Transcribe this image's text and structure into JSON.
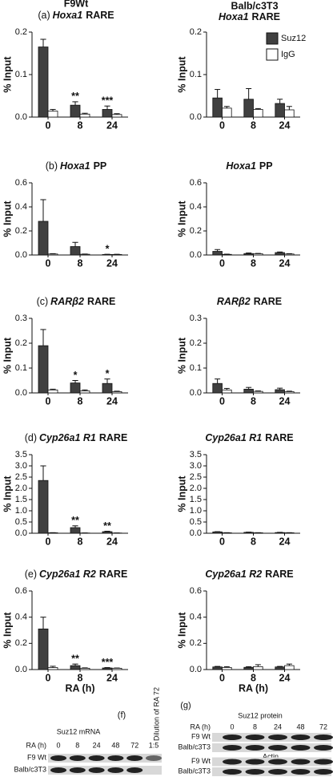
{
  "columns": [
    "F9Wt",
    "Balb/c3T3"
  ],
  "chart_data": [
    {
      "type": "bar",
      "panel": "(a)",
      "gene": "Hoxa1",
      "element": "RARE",
      "ylabel": "% Input",
      "categories": [
        "0",
        "8",
        "24"
      ],
      "ylim": [
        0,
        0.2
      ],
      "yticks": [
        {
          "value": 0,
          "label": "0.0"
        },
        0.1,
        0.2
      ],
      "series": [
        {
          "name": "Suz12",
          "color": "#404040",
          "values": [
            0.165,
            0.028,
            0.018
          ],
          "errors": [
            0.018,
            0.008,
            0.008
          ]
        },
        {
          "name": "IgG",
          "color": "#ffffff",
          "values": [
            0.014,
            0.007,
            0.006
          ],
          "errors": [
            0.004,
            0.002,
            0.002
          ]
        }
      ],
      "annotations": [
        {
          "category": 1,
          "text": "**"
        },
        {
          "category": 2,
          "text": "***"
        }
      ]
    },
    {
      "type": "bar",
      "gene": "Hoxa1",
      "element": "RARE",
      "ylabel": "% Input",
      "categories": [
        "0",
        "8",
        "24"
      ],
      "ylim": [
        0,
        0.2
      ],
      "yticks": [
        {
          "value": 0,
          "label": "0.0"
        },
        0.1,
        0.2
      ],
      "legend": "upper right",
      "series": [
        {
          "name": "Suz12",
          "color": "#404040",
          "values": [
            0.045,
            0.042,
            0.032
          ],
          "errors": [
            0.02,
            0.025,
            0.01
          ]
        },
        {
          "name": "IgG",
          "color": "#ffffff",
          "values": [
            0.021,
            0.018,
            0.017
          ],
          "errors": [
            0.004,
            0.002,
            0.008
          ]
        }
      ]
    },
    {
      "type": "bar",
      "panel": "(b)",
      "gene": "Hoxa1",
      "element": "PP",
      "ylabel": "% Input",
      "categories": [
        "0",
        "8",
        "24"
      ],
      "ylim": [
        0,
        0.6
      ],
      "yticks": [
        {
          "value": 0,
          "label": "0.0"
        },
        0.2,
        0.4,
        0.6
      ],
      "series": [
        {
          "name": "Suz12",
          "color": "#404040",
          "values": [
            0.28,
            0.07,
            0.004
          ],
          "errors": [
            0.18,
            0.035,
            0.002
          ]
        },
        {
          "name": "IgG",
          "color": "#ffffff",
          "values": [
            0.008,
            0.006,
            0.004
          ],
          "errors": [
            0.003,
            0.002,
            0.002
          ]
        }
      ],
      "annotations": [
        {
          "category": 2,
          "text": "*"
        }
      ]
    },
    {
      "type": "bar",
      "gene": "Hoxa1",
      "element": "PP",
      "ylabel": "% Input",
      "categories": [
        "0",
        "8",
        "24"
      ],
      "ylim": [
        0,
        0.6
      ],
      "yticks": [
        {
          "value": 0,
          "label": "0.0"
        },
        0.2,
        0.4,
        0.6
      ],
      "series": [
        {
          "name": "Suz12",
          "color": "#404040",
          "values": [
            0.03,
            0.012,
            0.02
          ],
          "errors": [
            0.015,
            0.005,
            0.005
          ]
        },
        {
          "name": "IgG",
          "color": "#ffffff",
          "values": [
            0.005,
            0.01,
            0.008
          ],
          "errors": [
            0.002,
            0.003,
            0.003
          ]
        }
      ]
    },
    {
      "type": "bar",
      "panel": "(c)",
      "gene": "RARβ2",
      "element": "RARE",
      "ylabel": "% Input",
      "categories": [
        "0",
        "8",
        "24"
      ],
      "ylim": [
        0,
        0.3
      ],
      "yticks": [
        {
          "value": 0,
          "label": "0.0"
        },
        0.1,
        0.2,
        0.3
      ],
      "series": [
        {
          "name": "Suz12",
          "color": "#404040",
          "values": [
            0.19,
            0.04,
            0.038
          ],
          "errors": [
            0.065,
            0.01,
            0.018
          ]
        },
        {
          "name": "IgG",
          "color": "#ffffff",
          "values": [
            0.012,
            0.008,
            0.005
          ],
          "errors": [
            0.003,
            0.004,
            0.002
          ]
        }
      ],
      "annotations": [
        {
          "category": 1,
          "text": "*"
        },
        {
          "category": 2,
          "text": "*"
        }
      ]
    },
    {
      "type": "bar",
      "gene": "RARβ2",
      "element": "RARE",
      "ylabel": "% Input",
      "categories": [
        "0",
        "8",
        "24"
      ],
      "ylim": [
        0,
        0.3
      ],
      "yticks": [
        {
          "value": 0,
          "label": "0.0"
        },
        0.1,
        0.2,
        0.3
      ],
      "series": [
        {
          "name": "Suz12",
          "color": "#404040",
          "values": [
            0.038,
            0.015,
            0.013
          ],
          "errors": [
            0.018,
            0.007,
            0.006
          ]
        },
        {
          "name": "IgG",
          "color": "#ffffff",
          "values": [
            0.012,
            0.006,
            0.005
          ],
          "errors": [
            0.006,
            0.002,
            0.002
          ]
        }
      ]
    },
    {
      "type": "bar",
      "panel": "(d)",
      "gene": "Cyp26a1 R1",
      "element": "RARE",
      "ylabel": "% Input",
      "categories": [
        "0",
        "8",
        "24"
      ],
      "ylim": [
        0,
        3.5
      ],
      "yticks": [
        {
          "value": 0,
          "label": "0.0"
        },
        0.5,
        {
          "value": 1,
          "label": "1.0"
        },
        1.5,
        {
          "value": 2,
          "label": "2.0"
        },
        2.5,
        {
          "value": 3,
          "label": "3.0"
        },
        3.5
      ],
      "series": [
        {
          "name": "Suz12",
          "color": "#404040",
          "values": [
            2.35,
            0.25,
            0.07
          ],
          "errors": [
            0.65,
            0.08,
            0.02
          ]
        },
        {
          "name": "IgG",
          "color": "#ffffff",
          "values": [
            0.02,
            0.01,
            0.01
          ],
          "errors": [
            0.005,
            0.003,
            0.003
          ]
        }
      ],
      "annotations": [
        {
          "category": 1,
          "text": "**"
        },
        {
          "category": 2,
          "text": "**"
        }
      ]
    },
    {
      "type": "bar",
      "gene": "Cyp26a1 R1",
      "element": "RARE",
      "ylabel": "% Input",
      "categories": [
        "0",
        "8",
        "24"
      ],
      "ylim": [
        0,
        3.5
      ],
      "yticks": [
        {
          "value": 0,
          "label": "0.0"
        },
        0.5,
        {
          "value": 1,
          "label": "1.0"
        },
        1.5,
        {
          "value": 2,
          "label": "2.0"
        },
        2.5,
        {
          "value": 3,
          "label": "3.0"
        },
        3.5
      ],
      "series": [
        {
          "name": "Suz12",
          "color": "#404040",
          "values": [
            0.06,
            0.04,
            0.03
          ],
          "errors": [
            0.01,
            0.01,
            0.01
          ]
        },
        {
          "name": "IgG",
          "color": "#ffffff",
          "values": [
            0.02,
            0.02,
            0.02
          ],
          "errors": [
            0.005,
            0.005,
            0.005
          ]
        }
      ]
    },
    {
      "type": "bar",
      "panel": "(e)",
      "gene": "Cyp26a1 R2",
      "element": "RARE",
      "ylabel": "% Input",
      "xlabel": "RA (h)",
      "categories": [
        "0",
        "8",
        "24"
      ],
      "ylim": [
        0,
        0.6
      ],
      "yticks": [
        {
          "value": 0,
          "label": "0.0"
        },
        0.2,
        0.4,
        0.6
      ],
      "series": [
        {
          "name": "Suz12",
          "color": "#404040",
          "values": [
            0.31,
            0.03,
            0.012
          ],
          "errors": [
            0.09,
            0.012,
            0.003
          ]
        },
        {
          "name": "IgG",
          "color": "#ffffff",
          "values": [
            0.015,
            0.01,
            0.01
          ],
          "errors": [
            0.01,
            0.003,
            0.002
          ]
        }
      ],
      "annotations": [
        {
          "category": 1,
          "text": "**"
        },
        {
          "category": 2,
          "text": "***"
        }
      ]
    },
    {
      "type": "bar",
      "gene": "Cyp26a1 R2",
      "element": "RARE",
      "ylabel": "% Input",
      "xlabel": "RA (h)",
      "categories": [
        "0",
        "8",
        "24"
      ],
      "ylim": [
        0,
        0.6
      ],
      "yticks": [
        {
          "value": 0,
          "label": "0.0"
        },
        0.2,
        0.4,
        0.6
      ],
      "series": [
        {
          "name": "Suz12",
          "color": "#404040",
          "values": [
            0.02,
            0.017,
            0.02
          ],
          "errors": [
            0.004,
            0.005,
            0.004
          ]
        },
        {
          "name": "IgG",
          "color": "#ffffff",
          "values": [
            0.016,
            0.022,
            0.03
          ],
          "errors": [
            0.006,
            0.015,
            0.012
          ]
        }
      ]
    }
  ],
  "gel_f": {
    "panel": "(f)",
    "title": "Suz12 mRNA",
    "lane_header": "RA (h)",
    "lanes": [
      "0",
      "8",
      "24",
      "48",
      "72",
      "1:5"
    ],
    "dilution_label": "Dilution of RA 72",
    "rows": [
      "F9 Wt",
      "Balb/c3T3"
    ]
  },
  "gel_g": {
    "panel": "(g)",
    "title": "Suz12 protein",
    "lane_header": "RA (h)",
    "lanes": [
      "0",
      "8",
      "24",
      "48",
      "72"
    ],
    "rows": [
      "F9 Wt",
      "Balb/c3T3"
    ],
    "control": "Actin",
    "control_rows": [
      "F9 Wt",
      "Balb/c3T3"
    ]
  }
}
